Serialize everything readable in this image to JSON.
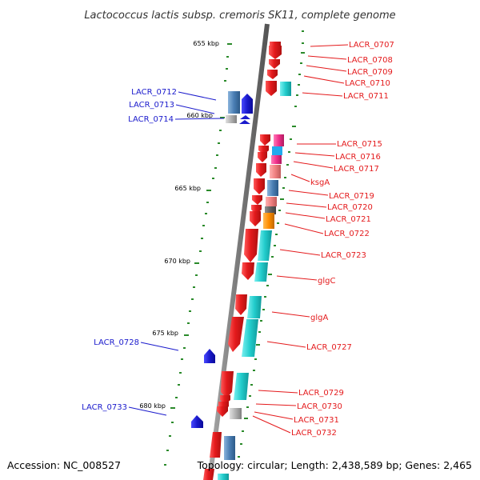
{
  "title": "Lactococcus lactis subsp. cremoris SK11, complete genome",
  "footer": {
    "accession": "Accession: NC_008527",
    "topology": "Topology: circular; Length: 2,438,589 bp; Genes: 2,465"
  },
  "scale_labels": [
    "655 kbp",
    "660 kbp",
    "665 kbp",
    "670 kbp",
    "675 kbp",
    "680 kbp"
  ],
  "genes_minus_strand": [
    {
      "label": "LACR_0707",
      "color": "#e41a1c"
    },
    {
      "label": "LACR_0708",
      "color": "#e41a1c"
    },
    {
      "label": "LACR_0709",
      "color": "#e41a1c"
    },
    {
      "label": "LACR_0710",
      "color": "#e41a1c"
    },
    {
      "label": "LACR_0711",
      "color": "#e41a1c"
    },
    {
      "label": "LACR_0715",
      "color": "#e41a1c"
    },
    {
      "label": "LACR_0716",
      "color": "#e41a1c"
    },
    {
      "label": "LACR_0717",
      "color": "#e41a1c"
    },
    {
      "label": "ksgA",
      "color": "#e41a1c"
    },
    {
      "label": "LACR_0719",
      "color": "#e41a1c"
    },
    {
      "label": "LACR_0720",
      "color": "#e41a1c"
    },
    {
      "label": "LACR_0721",
      "color": "#e41a1c"
    },
    {
      "label": "LACR_0722",
      "color": "#e41a1c"
    },
    {
      "label": "LACR_0723",
      "color": "#e41a1c"
    },
    {
      "label": "glgC",
      "color": "#e41a1c"
    },
    {
      "label": "glgA",
      "color": "#e41a1c"
    },
    {
      "label": "LACR_0727",
      "color": "#e41a1c"
    },
    {
      "label": "LACR_0729",
      "color": "#e41a1c"
    },
    {
      "label": "LACR_0730",
      "color": "#e41a1c"
    },
    {
      "label": "LACR_0731",
      "color": "#e41a1c"
    },
    {
      "label": "LACR_0732",
      "color": "#e41a1c"
    }
  ],
  "genes_plus_strand": [
    {
      "label": "LACR_0712",
      "color": "#1a1acc"
    },
    {
      "label": "LACR_0713",
      "color": "#1a1acc"
    },
    {
      "label": "LACR_0714",
      "color": "#1a1acc"
    },
    {
      "label": "LACR_0728",
      "color": "#1a1acc"
    },
    {
      "label": "LACR_0733",
      "color": "#1a1acc"
    }
  ],
  "colors": {
    "minus_strand": "#e41a1c",
    "plus_strand": "#1a1acc",
    "backbone": "#808080",
    "tick": "#2a8a2a",
    "cog_cyan": "#22cccc",
    "cog_steelblue": "#4a7eb4",
    "cog_pink": "#f0308a",
    "cog_salmon": "#f08080",
    "cog_orange": "#ff8c00",
    "cog_gray": "#b0b0b0"
  }
}
